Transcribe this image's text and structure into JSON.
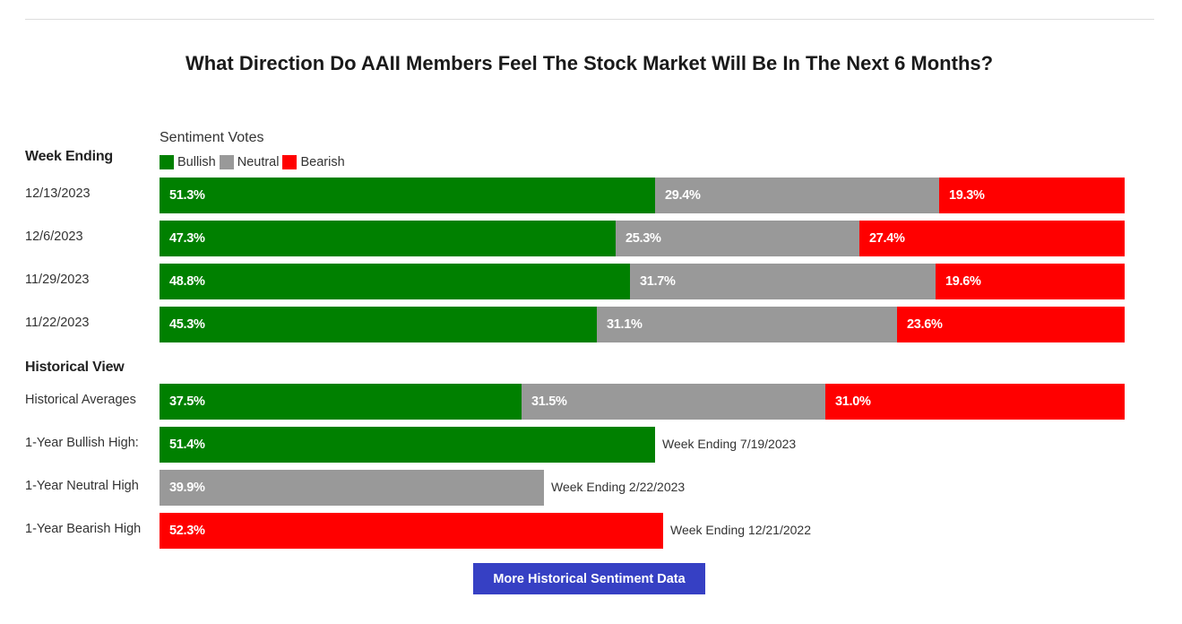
{
  "title": "What Direction Do AAII Members Feel The Stock Market Will Be In The Next 6 Months?",
  "colors": {
    "bullish": "#008000",
    "neutral": "#999999",
    "bearish": "#ff0000",
    "button": "#3640c4"
  },
  "legend": {
    "heading": "Sentiment Votes",
    "items": [
      "Bullish",
      "Neutral",
      "Bearish"
    ]
  },
  "sections": {
    "weekly": "Week Ending",
    "historical": "Historical View"
  },
  "button": {
    "label": "More Historical Sentiment Data"
  },
  "chart_data": {
    "type": "bar",
    "orientation": "horizontal",
    "stacked": true,
    "title": "What Direction Do AAII Members Feel The Stock Market Will Be In The Next 6 Months?",
    "series": [
      {
        "name": "Bullish",
        "color": "#008000"
      },
      {
        "name": "Neutral",
        "color": "#999999"
      },
      {
        "name": "Bearish",
        "color": "#ff0000"
      }
    ],
    "weekly_rows": [
      {
        "label": "12/13/2023",
        "values": [
          51.3,
          29.4,
          19.3
        ],
        "labels": [
          "51.3%",
          "29.4%",
          "19.3%"
        ]
      },
      {
        "label": "12/6/2023",
        "values": [
          47.3,
          25.3,
          27.4
        ],
        "labels": [
          "47.3%",
          "25.3%",
          "27.4%"
        ]
      },
      {
        "label": "11/29/2023",
        "values": [
          48.8,
          31.7,
          19.6
        ],
        "labels": [
          "48.8%",
          "31.7%",
          "19.6%"
        ]
      },
      {
        "label": "11/22/2023",
        "values": [
          45.3,
          31.1,
          23.6
        ],
        "labels": [
          "45.3%",
          "31.1%",
          "23.6%"
        ]
      }
    ],
    "historical_rows": [
      {
        "label": "Historical Averages",
        "values": [
          37.5,
          31.5,
          31.0
        ],
        "labels": [
          "37.5%",
          "31.5%",
          "31.0%"
        ]
      }
    ],
    "high_rows": [
      {
        "label": "1-Year Bullish High:",
        "series": "Bullish",
        "value": 51.4,
        "value_label": "51.4%",
        "note": "Week Ending 7/19/2023"
      },
      {
        "label": "1-Year Neutral High",
        "series": "Neutral",
        "value": 39.9,
        "value_label": "39.9%",
        "note": "Week Ending 2/22/2023"
      },
      {
        "label": "1-Year Bearish High",
        "series": "Bearish",
        "value": 52.3,
        "value_label": "52.3%",
        "note": "Week Ending 12/21/2022"
      }
    ],
    "xlim": [
      0,
      100
    ]
  }
}
